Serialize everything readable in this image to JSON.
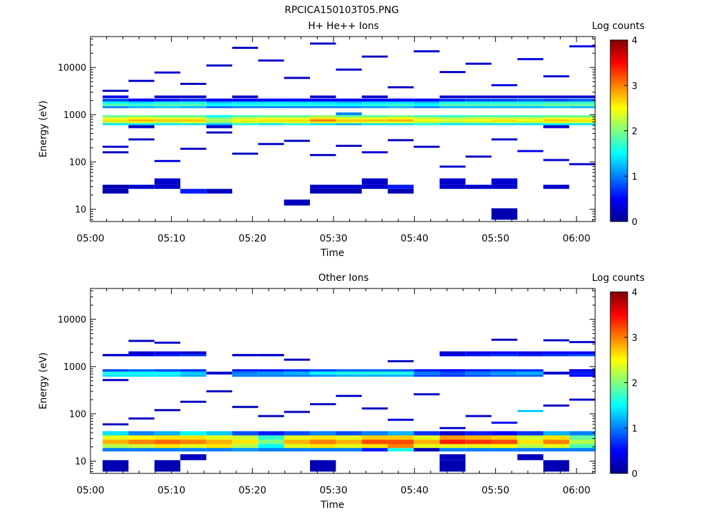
{
  "page_title": "RPCICA150103T05.PNG",
  "chart_data": [
    {
      "type": "heatmap",
      "title": "H+ He++ Ions",
      "xlabel": "Time",
      "ylabel": "Energy (eV)",
      "y_scale": "log",
      "ylim": [
        5.5,
        45000
      ],
      "y_ticks": [
        10,
        100,
        1000,
        10000
      ],
      "y_tick_labels": [
        "10",
        "100",
        "1000",
        "10000"
      ],
      "x_range_minutes": [
        0,
        62.3
      ],
      "x_ticks": [
        0,
        10,
        20,
        30,
        40,
        50,
        60
      ],
      "x_tick_labels": [
        "05:00",
        "05:10",
        "05:20",
        "05:30",
        "05:40",
        "05:50",
        "06:00"
      ],
      "time_bins_start_minutes": [
        1.5,
        4.7,
        7.9,
        11.1,
        14.3,
        17.5,
        20.7,
        23.9,
        27.1,
        30.3,
        33.5,
        36.7,
        39.9,
        43.1,
        46.3,
        49.5,
        52.7,
        55.9,
        59.1
      ],
      "time_bin_width_minutes": 3.2,
      "colorbar": {
        "label": "Log counts",
        "range": [
          0,
          4
        ],
        "ticks": [
          "0",
          "1",
          "2",
          "3",
          "4"
        ]
      },
      "rows": [
        {
          "energy": 12,
          "lo": 12,
          "hi": 16,
          "levels": [
            0,
            0,
            0,
            0,
            0,
            0,
            0,
            0.25,
            0,
            0,
            0,
            0,
            0,
            0,
            0,
            0,
            0,
            0,
            0
          ]
        },
        {
          "energy": 9,
          "lo": 6,
          "hi": 10.5,
          "levels": [
            0,
            0,
            0,
            0,
            0,
            0,
            0,
            0,
            0,
            0,
            0,
            0,
            0,
            0,
            0,
            0.2,
            0,
            0,
            0
          ]
        },
        {
          "energy": 25,
          "lo": 21.5,
          "hi": 27,
          "levels": [
            0.2,
            0,
            0,
            0.6,
            0.25,
            0,
            0,
            0,
            0.2,
            0.2,
            0,
            0.2,
            0,
            0,
            0,
            0,
            0,
            0,
            0
          ]
        },
        {
          "energy": 30,
          "lo": 27,
          "hi": 33,
          "levels": [
            0.2,
            0.3,
            0.3,
            0,
            0,
            0,
            0,
            0,
            0.3,
            0.3,
            0.3,
            0.6,
            0,
            0.3,
            0.3,
            0.3,
            0,
            0.3,
            0
          ]
        },
        {
          "energy": 38,
          "lo": 33,
          "hi": 45,
          "levels": [
            0,
            0,
            0.3,
            0,
            0,
            0,
            0,
            0,
            0,
            0,
            0.3,
            0,
            0,
            0.3,
            0,
            0.3,
            0,
            0,
            0
          ]
        },
        {
          "energy": 550,
          "lo": 520,
          "hi": 600,
          "levels": [
            0,
            0.3,
            0,
            0,
            0.3,
            0,
            0,
            0,
            0,
            0,
            0,
            0,
            0,
            0,
            0,
            0,
            0,
            0.3,
            0
          ]
        },
        {
          "energy": 630,
          "lo": 600,
          "hi": 660,
          "levels": [
            1.4,
            1.4,
            1.4,
            1.4,
            1.2,
            1.6,
            1.4,
            1.6,
            1.4,
            1.2,
            1.4,
            1.4,
            1.6,
            1.4,
            1.4,
            1.4,
            1.4,
            1.5,
            1.4
          ]
        },
        {
          "energy": 690,
          "lo": 660,
          "hi": 720,
          "levels": [
            2.2,
            2.4,
            2.2,
            2.4,
            2.0,
            2.3,
            2.3,
            2.4,
            2.6,
            2.4,
            2.4,
            2.4,
            2.2,
            2.1,
            2.2,
            2.3,
            2.2,
            2.4,
            2.3
          ]
        },
        {
          "energy": 760,
          "lo": 720,
          "hi": 800,
          "levels": [
            2.6,
            2.8,
            2.7,
            2.7,
            2.2,
            2.5,
            2.6,
            2.6,
            3.0,
            2.7,
            2.7,
            2.8,
            2.5,
            2.4,
            2.5,
            2.6,
            2.5,
            2.7,
            2.6
          ]
        },
        {
          "energy": 840,
          "lo": 800,
          "hi": 880,
          "levels": [
            2.4,
            2.5,
            2.4,
            2.4,
            2.0,
            2.3,
            2.4,
            2.4,
            2.6,
            2.4,
            2.4,
            2.5,
            2.3,
            2.2,
            2.3,
            2.3,
            2.3,
            2.4,
            2.4
          ]
        },
        {
          "energy": 930,
          "lo": 880,
          "hi": 980,
          "levels": [
            1.9,
            2.0,
            1.9,
            1.9,
            1.5,
            1.8,
            1.9,
            1.9,
            2.1,
            1.9,
            1.9,
            2.0,
            1.8,
            1.7,
            1.8,
            1.8,
            1.8,
            1.9,
            1.9
          ]
        },
        {
          "energy": 1050,
          "lo": 980,
          "hi": 1120,
          "levels": [
            0,
            0,
            0,
            0,
            0,
            0,
            0,
            0,
            0,
            1.0,
            0,
            0,
            0,
            0,
            0,
            0,
            0,
            0,
            0
          ]
        },
        {
          "energy": 1450,
          "lo": 1380,
          "hi": 1520,
          "levels": [
            1.0,
            1.2,
            1.3,
            1.2,
            0.9,
            1.0,
            1.0,
            1.0,
            1.0,
            1.0,
            1.1,
            1.2,
            1.0,
            1.2,
            1.2,
            1.2,
            1.2,
            1.3,
            1.2
          ]
        },
        {
          "energy": 1600,
          "lo": 1520,
          "hi": 1700,
          "levels": [
            1.8,
            1.7,
            1.8,
            1.8,
            1.5,
            1.6,
            1.6,
            1.6,
            1.6,
            1.5,
            1.6,
            1.7,
            1.5,
            1.8,
            1.8,
            1.8,
            1.8,
            1.9,
            1.9
          ]
        },
        {
          "energy": 1800,
          "lo": 1700,
          "hi": 1900,
          "levels": [
            1.5,
            1.4,
            1.6,
            1.6,
            1.3,
            1.4,
            1.4,
            1.4,
            1.4,
            1.3,
            1.4,
            1.4,
            1.3,
            1.6,
            1.6,
            1.6,
            1.6,
            1.7,
            1.7
          ]
        },
        {
          "energy": 2050,
          "lo": 1900,
          "hi": 2200,
          "levels": [
            0.8,
            0.5,
            0.6,
            0.7,
            0.5,
            0.5,
            0.5,
            0.5,
            0.5,
            0.5,
            0.5,
            0.5,
            0.5,
            0.7,
            0.8,
            0.8,
            0.9,
            0.8,
            0.9
          ]
        },
        {
          "energy": 2400,
          "lo": 2250,
          "hi": 2550,
          "levels": [
            0.4,
            0,
            0.3,
            0.3,
            0,
            0.3,
            0,
            0,
            0.3,
            0,
            0.3,
            0,
            0,
            0.3,
            0.3,
            0.3,
            0.3,
            0.3,
            0.3
          ]
        }
      ],
      "sparse_segments_top": [
        [
          0,
          160,
          0.25
        ],
        [
          0,
          210,
          0.3
        ],
        [
          1,
          300,
          0.25
        ],
        [
          2,
          105,
          0.4
        ],
        [
          3,
          190,
          0.25
        ],
        [
          4,
          420,
          0.25
        ],
        [
          5,
          150,
          0.25
        ],
        [
          6,
          240,
          0.3
        ],
        [
          7,
          280,
          0.25
        ],
        [
          8,
          140,
          0.25
        ],
        [
          9,
          220,
          0.25
        ],
        [
          10,
          160,
          0.3
        ],
        [
          11,
          290,
          0.25
        ],
        [
          12,
          210,
          0.25
        ],
        [
          13,
          80,
          0.3
        ],
        [
          14,
          130,
          0.25
        ],
        [
          15,
          300,
          0.3
        ],
        [
          16,
          170,
          0.5
        ],
        [
          17,
          110,
          0.3
        ],
        [
          18,
          90,
          0.3
        ],
        [
          0,
          3200,
          0.25
        ],
        [
          1,
          5200,
          0.3
        ],
        [
          2,
          7800,
          0.3
        ],
        [
          3,
          4500,
          0.25
        ],
        [
          4,
          11000,
          0.3
        ],
        [
          5,
          26000,
          0.25
        ],
        [
          6,
          14000,
          0.3
        ],
        [
          7,
          6000,
          0.25
        ],
        [
          8,
          32000,
          0.25
        ],
        [
          9,
          9000,
          0.3
        ],
        [
          10,
          17000,
          0.25
        ],
        [
          11,
          3800,
          0.3
        ],
        [
          12,
          22000,
          0.3
        ],
        [
          13,
          8000,
          0.25
        ],
        [
          14,
          12000,
          0.3
        ],
        [
          15,
          4200,
          0.4
        ],
        [
          16,
          15000,
          0.4
        ],
        [
          17,
          6500,
          0.35
        ],
        [
          18,
          28000,
          0.4
        ]
      ]
    },
    {
      "type": "heatmap",
      "title": "Other Ions",
      "xlabel": "Time",
      "ylabel": "Energy (eV)",
      "y_scale": "log",
      "ylim": [
        5.5,
        45000
      ],
      "y_ticks": [
        10,
        100,
        1000,
        10000
      ],
      "y_tick_labels": [
        "10",
        "100",
        "1000",
        "10000"
      ],
      "x_range_minutes": [
        0,
        62.3
      ],
      "x_ticks": [
        0,
        10,
        20,
        30,
        40,
        50,
        60
      ],
      "x_tick_labels": [
        "05:00",
        "05:10",
        "05:20",
        "05:30",
        "05:40",
        "05:50",
        "06:00"
      ],
      "time_bins_start_minutes": [
        1.5,
        4.7,
        7.9,
        11.1,
        14.3,
        17.5,
        20.7,
        23.9,
        27.1,
        30.3,
        33.5,
        36.7,
        39.9,
        43.1,
        46.3,
        49.5,
        52.7,
        55.9,
        59.1
      ],
      "time_bin_width_minutes": 3.2,
      "colorbar": {
        "label": "Log counts",
        "range": [
          0,
          4
        ],
        "ticks": [
          "0",
          "1",
          "2",
          "3",
          "4"
        ]
      },
      "rows": [
        {
          "energy": 9,
          "lo": 6,
          "hi": 10.5,
          "levels": [
            0.2,
            0,
            0.2,
            0,
            0,
            0,
            0,
            0,
            0.2,
            0,
            0,
            0,
            0,
            0.2,
            0,
            0,
            0,
            0.2,
            0
          ]
        },
        {
          "energy": 12,
          "lo": 10.5,
          "hi": 14,
          "levels": [
            0,
            0,
            0,
            0.25,
            0,
            0,
            0,
            0,
            0,
            0,
            0,
            0,
            0,
            0.25,
            0,
            0,
            0.25,
            0,
            0
          ]
        },
        {
          "energy": 17,
          "lo": 16,
          "hi": 19,
          "levels": [
            1.0,
            1.0,
            1.0,
            1.0,
            1.0,
            1.1,
            1.0,
            1.0,
            1.0,
            1.0,
            0.6,
            1.6,
            0.2,
            1.0,
            1.0,
            1.0,
            1.0,
            1.0,
            1.0
          ]
        },
        {
          "energy": 21,
          "lo": 19,
          "hi": 23,
          "levels": [
            2.2,
            2.3,
            2.6,
            2.4,
            2.6,
            2.2,
            1.5,
            2.4,
            2.6,
            2.4,
            2.6,
            3.0,
            2.4,
            2.4,
            2.4,
            2.5,
            2.2,
            2.4,
            1.8
          ]
        },
        {
          "energy": 26,
          "lo": 23,
          "hi": 28.5,
          "levels": [
            2.8,
            3.0,
            3.1,
            3.0,
            2.8,
            2.6,
            2.0,
            2.8,
            3.0,
            2.8,
            3.2,
            3.2,
            2.8,
            3.4,
            3.3,
            3.2,
            2.6,
            3.0,
            2.2
          ]
        },
        {
          "energy": 32,
          "lo": 28.5,
          "hi": 35,
          "levels": [
            2.4,
            2.5,
            2.6,
            2.6,
            2.4,
            2.3,
            1.7,
            2.4,
            2.6,
            2.4,
            2.7,
            2.7,
            2.4,
            2.9,
            2.8,
            2.7,
            2.3,
            2.6,
            1.9
          ]
        },
        {
          "energy": 39,
          "lo": 35,
          "hi": 43,
          "levels": [
            1.4,
            1.0,
            1.2,
            1.5,
            1.3,
            0.8,
            0.6,
            0.8,
            1.0,
            0.8,
            1.0,
            1.2,
            0.7,
            0.3,
            0.6,
            0.5,
            0.7,
            1.2,
            1.0
          ]
        },
        {
          "energy": 640,
          "lo": 610,
          "hi": 680,
          "levels": [
            1.4,
            1.4,
            1.4,
            1.2,
            0,
            1.0,
            1.0,
            1.0,
            1.1,
            1.2,
            1.2,
            1.2,
            0.8,
            0.7,
            0.8,
            0.9,
            0.9,
            0,
            0.5
          ]
        },
        {
          "energy": 730,
          "lo": 680,
          "hi": 780,
          "levels": [
            1.6,
            1.5,
            1.5,
            1.3,
            0.3,
            1.0,
            1.1,
            1.2,
            1.5,
            1.6,
            1.6,
            1.6,
            1.0,
            0.8,
            1.0,
            1.1,
            1.2,
            0.3,
            0.6
          ]
        },
        {
          "energy": 830,
          "lo": 780,
          "hi": 880,
          "levels": [
            0.8,
            0.9,
            0.8,
            0.7,
            0,
            0.6,
            0.6,
            0.7,
            0.8,
            0.9,
            0.9,
            0.9,
            0.6,
            0.5,
            0.6,
            0.7,
            0.7,
            0,
            0.4
          ]
        },
        {
          "energy": 1750,
          "lo": 1650,
          "hi": 1850,
          "levels": [
            0.3,
            0.4,
            0.6,
            0.7,
            0,
            0.3,
            0.3,
            0,
            0,
            0,
            0,
            0,
            0,
            0.4,
            0.6,
            0.7,
            0.6,
            0.7,
            0.8
          ]
        },
        {
          "energy": 1950,
          "lo": 1850,
          "hi": 2100,
          "levels": [
            0,
            0.3,
            0.4,
            0.3,
            0,
            0,
            0,
            0,
            0,
            0,
            0,
            0,
            0,
            0.3,
            0.4,
            0.5,
            0.4,
            0.5,
            0.5
          ]
        }
      ],
      "sparse_segments_top": [
        [
          0,
          60,
          0.25
        ],
        [
          1,
          80,
          0.25
        ],
        [
          2,
          120,
          0.25
        ],
        [
          3,
          180,
          0.25
        ],
        [
          4,
          300,
          0.25
        ],
        [
          5,
          140,
          0.25
        ],
        [
          6,
          90,
          0.25
        ],
        [
          7,
          110,
          0.25
        ],
        [
          8,
          160,
          0.25
        ],
        [
          9,
          240,
          0.3
        ],
        [
          10,
          130,
          0.25
        ],
        [
          11,
          75,
          0.4
        ],
        [
          12,
          260,
          0.25
        ],
        [
          13,
          50,
          0.3
        ],
        [
          14,
          90,
          0.3
        ],
        [
          15,
          65,
          0.5
        ],
        [
          16,
          115,
          1.3
        ],
        [
          17,
          150,
          0.25
        ],
        [
          18,
          200,
          0.3
        ],
        [
          0,
          520,
          0.25
        ],
        [
          1,
          3500,
          0.25
        ],
        [
          2,
          3200,
          0.3
        ],
        [
          7,
          1400,
          0.25
        ],
        [
          11,
          1300,
          0.25
        ],
        [
          15,
          3700,
          0.25
        ],
        [
          17,
          3600,
          0.25
        ],
        [
          18,
          3300,
          0.3
        ]
      ]
    }
  ]
}
